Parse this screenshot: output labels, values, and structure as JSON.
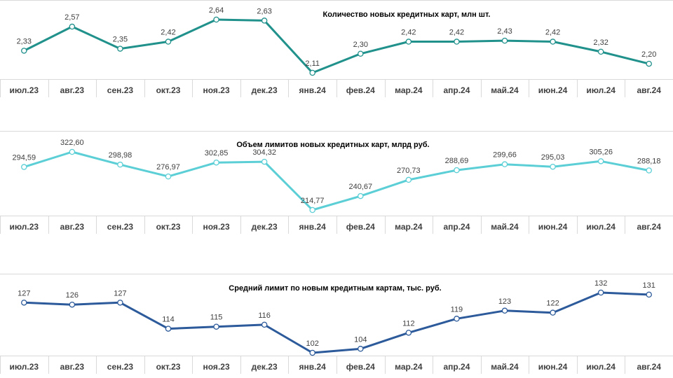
{
  "months": [
    "июл.23",
    "авг.23",
    "сен.23",
    "окт.23",
    "ноя.23",
    "дек.23",
    "янв.24",
    "фев.24",
    "мар.24",
    "апр.24",
    "май.24",
    "июн.24",
    "июл.24",
    "авг.24"
  ],
  "chart_data": [
    {
      "type": "line",
      "title": "Количество  новых кредитных карт, млн шт.",
      "categories": [
        "июл.23",
        "авг.23",
        "сен.23",
        "окт.23",
        "ноя.23",
        "дек.23",
        "янв.24",
        "фев.24",
        "мар.24",
        "апр.24",
        "май.24",
        "июн.24",
        "июл.24",
        "авг.24"
      ],
      "values": [
        2.33,
        2.57,
        2.35,
        2.42,
        2.64,
        2.63,
        2.11,
        2.3,
        2.42,
        2.42,
        2.43,
        2.42,
        2.32,
        2.2
      ],
      "labels": [
        "2,33",
        "2,57",
        "2,35",
        "2,42",
        "2,64",
        "2,63",
        "2,11",
        "2,30",
        "2,42",
        "2,42",
        "2,43",
        "2,42",
        "2,32",
        "2,20"
      ],
      "color": "#21918c",
      "ylim": [
        2.0,
        2.75
      ],
      "grid": false
    },
    {
      "type": "line",
      "title": "Объем лимитов новых кредитных карт, млрд руб.",
      "categories": [
        "июл.23",
        "авг.23",
        "сен.23",
        "окт.23",
        "ноя.23",
        "дек.23",
        "янв.24",
        "фев.24",
        "мар.24",
        "апр.24",
        "май.24",
        "июн.24",
        "июл.24",
        "авг.24"
      ],
      "values": [
        294.59,
        322.6,
        298.98,
        276.97,
        302.85,
        304.32,
        214.77,
        240.67,
        270.73,
        288.69,
        299.66,
        295.03,
        305.26,
        288.18
      ],
      "labels": [
        "294,59",
        "322,60",
        "298,98",
        "276,97",
        "302,85",
        "304,32",
        "214,77",
        "240,67",
        "270,73",
        "288,69",
        "299,66",
        "295,03",
        "305,26",
        "288,18"
      ],
      "color": "#5ccfd6",
      "ylim": [
        205,
        335
      ],
      "grid": false
    },
    {
      "type": "line",
      "title": "Средний лимит по новым кредитным картам, тыс. руб.",
      "categories": [
        "июл.23",
        "авг.23",
        "сен.23",
        "окт.23",
        "ноя.23",
        "дек.23",
        "янв.24",
        "фев.24",
        "мар.24",
        "апр.24",
        "май.24",
        "июн.24",
        "июл.24",
        "авг.24"
      ],
      "values": [
        127,
        126,
        127,
        114,
        115,
        116,
        102,
        104,
        112,
        119,
        123,
        122,
        132,
        131
      ],
      "labels": [
        "127",
        "126",
        "127",
        "114",
        "115",
        "116",
        "102",
        "104",
        "112",
        "119",
        "123",
        "122",
        "132",
        "131"
      ],
      "color": "#2c5a9a",
      "ylim": [
        98,
        140
      ],
      "grid": false
    }
  ]
}
